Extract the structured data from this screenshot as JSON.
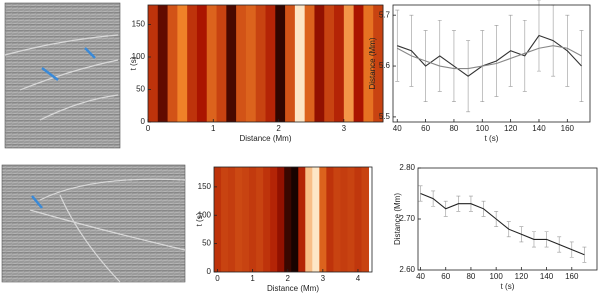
{
  "chart_data": [
    {
      "type": "heatmap",
      "xlabel": "Distance (Mm)",
      "ylabel": "t (s)",
      "xlim": [
        0,
        3.6
      ],
      "ylim": [
        0,
        180
      ],
      "xticks": [
        0,
        1,
        2,
        3
      ],
      "yticks": [
        0,
        50,
        100,
        150
      ],
      "x": [
        0.075,
        0.225,
        0.375,
        0.525,
        0.675,
        0.825,
        0.975,
        1.125,
        1.275,
        1.425,
        1.575,
        1.725,
        1.875,
        2.025,
        2.175,
        2.325,
        2.475,
        2.625,
        2.775,
        2.925,
        3.075,
        3.225,
        3.375,
        3.525
      ],
      "values": [
        0.45,
        0.2,
        0.55,
        0.7,
        0.45,
        0.35,
        0.6,
        0.5,
        0.15,
        0.55,
        0.6,
        0.5,
        0.4,
        0.1,
        0.55,
        0.95,
        0.6,
        0.3,
        0.5,
        0.4,
        0.75,
        0.35,
        0.65,
        0.5
      ]
    },
    {
      "type": "line",
      "xlabel": "t (s)",
      "ylabel": "Distance (Mm)",
      "xlim": [
        37,
        176
      ],
      "ylim": [
        5.49,
        5.72
      ],
      "xticks": [
        40,
        60,
        80,
        100,
        120,
        140,
        160
      ],
      "yticks": [
        5.5,
        5.6,
        5.7
      ],
      "x": [
        40,
        50,
        60,
        70,
        80,
        90,
        100,
        110,
        120,
        130,
        140,
        150,
        160,
        170
      ],
      "series": [
        {
          "color": "#333333",
          "values": [
            5.64,
            5.63,
            5.6,
            5.62,
            5.6,
            5.58,
            5.6,
            5.61,
            5.63,
            5.62,
            5.66,
            5.65,
            5.63,
            5.6
          ],
          "errors": [
            0.07,
            0.07,
            0.07,
            0.07,
            0.07,
            0.07,
            0.07,
            0.07,
            0.07,
            0.07,
            0.07,
            0.07,
            0.07,
            0.07
          ]
        },
        {
          "color": "#888888",
          "values": [
            5.635,
            5.62,
            5.61,
            5.6,
            5.595,
            5.595,
            5.6,
            5.605,
            5.615,
            5.625,
            5.635,
            5.64,
            5.635,
            5.62
          ]
        }
      ]
    },
    {
      "type": "heatmap",
      "xlabel": "Distance (Mm)",
      "ylabel": "t (s)",
      "xlim": [
        -0.1,
        4.4
      ],
      "ylim": [
        0,
        185
      ],
      "xticks": [
        0,
        1,
        2,
        3,
        4
      ],
      "yticks": [
        0,
        50,
        100,
        150
      ],
      "x": [
        0,
        0.2,
        0.4,
        0.6,
        0.8,
        1.0,
        1.2,
        1.4,
        1.6,
        1.8,
        2.0,
        2.2,
        2.4,
        2.6,
        2.8,
        3.0,
        3.2,
        3.4,
        3.6,
        3.8,
        4.0,
        4.2
      ],
      "values": [
        0.45,
        0.5,
        0.48,
        0.52,
        0.5,
        0.47,
        0.5,
        0.45,
        0.4,
        0.3,
        0.12,
        0.05,
        0.4,
        0.85,
        0.95,
        0.6,
        0.45,
        0.5,
        0.48,
        0.5,
        0.46,
        0.5
      ]
    },
    {
      "type": "line",
      "xlabel": "t (s)",
      "ylabel": "Distance (Mm)",
      "xlim": [
        38,
        180
      ],
      "ylim": [
        2.6,
        2.8
      ],
      "xticks": [
        40,
        60,
        80,
        100,
        120,
        140,
        160
      ],
      "yticks": [
        {
          "value": 2.6,
          "label": "2.60"
        },
        {
          "value": 2.7,
          "label": "2.70"
        },
        {
          "value": 2.8,
          "label": "2.80"
        }
      ],
      "x": [
        40,
        50,
        60,
        70,
        80,
        90,
        100,
        110,
        120,
        130,
        140,
        150,
        160,
        170
      ],
      "series": [
        {
          "color": "#222222",
          "values": [
            2.75,
            2.74,
            2.72,
            2.73,
            2.73,
            2.72,
            2.7,
            2.68,
            2.67,
            2.66,
            2.66,
            2.65,
            2.64,
            2.63
          ],
          "errors": [
            0.015,
            0.015,
            0.015,
            0.015,
            0.015,
            0.015,
            0.015,
            0.015,
            0.015,
            0.015,
            0.015,
            0.015,
            0.015,
            0.015
          ]
        }
      ]
    }
  ]
}
